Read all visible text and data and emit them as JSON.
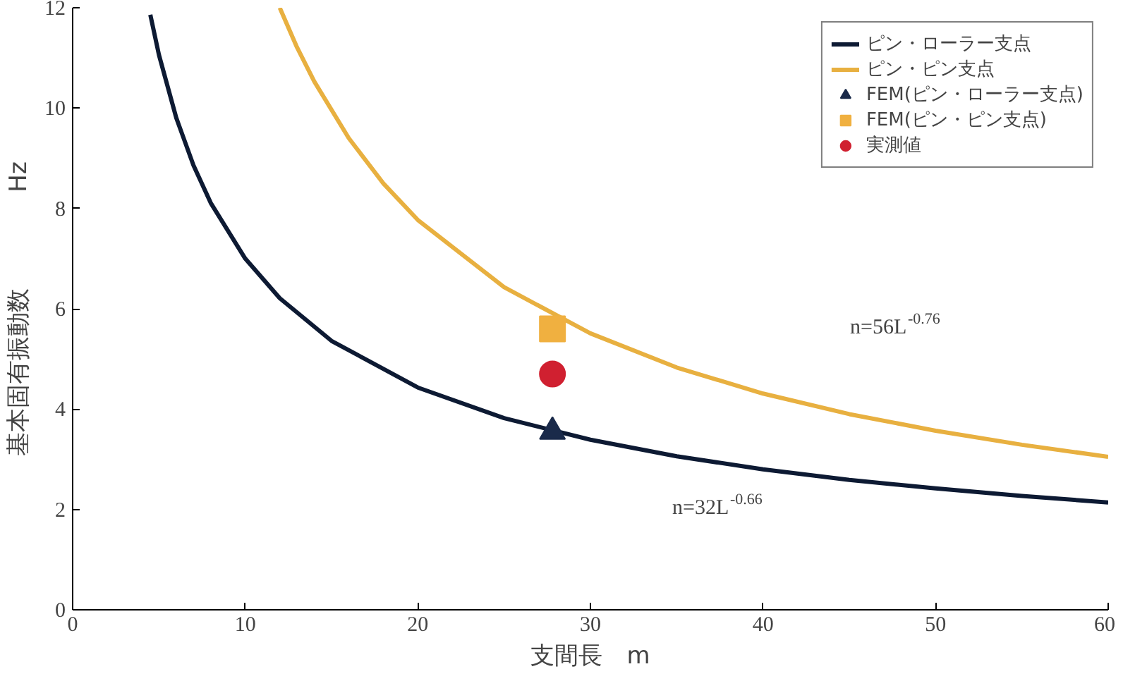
{
  "chart_data": {
    "type": "line",
    "xlabel": "支間長　m",
    "ylabel": "基本固有振動数　　　　Hz",
    "xlim": [
      0,
      60
    ],
    "ylim": [
      0,
      12
    ],
    "xticks": [
      0,
      10,
      20,
      30,
      40,
      50,
      60
    ],
    "yticks": [
      0,
      2,
      4,
      6,
      8,
      10,
      12
    ],
    "grid": false,
    "legend": "top right",
    "series": [
      {
        "name": "ピン・ローラー支点",
        "color": "#0d1a33",
        "x": [
          4.5,
          5,
          6,
          7,
          8,
          10,
          12,
          15,
          20,
          25,
          30,
          35,
          40,
          45,
          50,
          55,
          60
        ],
        "values": [
          11.86,
          11.06,
          9.81,
          8.86,
          8.11,
          7.0,
          6.21,
          5.36,
          4.43,
          3.82,
          3.39,
          3.06,
          2.8,
          2.59,
          2.42,
          2.27,
          2.14
        ]
      },
      {
        "name": "ピン・ピン支点",
        "color": "#e8b040",
        "x": [
          12,
          13,
          14,
          16,
          18,
          20,
          25,
          30,
          35,
          40,
          45,
          50,
          55,
          60
        ],
        "values": [
          12,
          11.21,
          10.53,
          9.4,
          8.5,
          7.77,
          6.43,
          5.51,
          4.83,
          4.31,
          3.9,
          3.57,
          3.29,
          3.05
        ]
      },
      {
        "name": "FEM(ピン・ローラー支点)",
        "type": "scatter",
        "marker": "triangle",
        "color": "#1a2a4a",
        "x": [
          27.8
        ],
        "values": [
          3.55
        ]
      },
      {
        "name": "FEM(ピン・ピン支点)",
        "type": "scatter",
        "marker": "square",
        "color": "#f0b040",
        "x": [
          27.8
        ],
        "values": [
          5.6
        ]
      },
      {
        "name": "実測値",
        "type": "scatter",
        "marker": "circle",
        "color": "#d02030",
        "x": [
          27.8
        ],
        "values": [
          4.7
        ]
      }
    ],
    "annotations": [
      "n=56L$^{-0.76}$",
      "n=32L$^{-0.66}$"
    ]
  }
}
